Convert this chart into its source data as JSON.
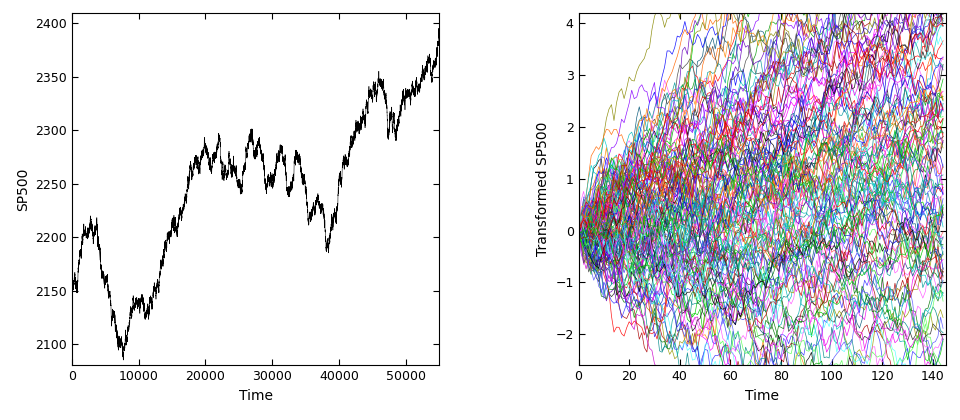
{
  "left_panel": {
    "xlabel": "Time",
    "ylabel": "SP500",
    "xlim": [
      0,
      55000
    ],
    "ylim": [
      2080,
      2410
    ],
    "xticks": [
      0,
      10000,
      20000,
      30000,
      40000,
      50000
    ],
    "yticks": [
      2100,
      2150,
      2200,
      2250,
      2300,
      2350,
      2400
    ],
    "line_color": "#000000",
    "n_points": 55000
  },
  "right_panel": {
    "xlabel": "Time",
    "ylabel": "Transformed SP500",
    "xlim": [
      0,
      145
    ],
    "ylim": [
      -2.6,
      4.2
    ],
    "xticks": [
      0,
      20,
      40,
      60,
      80,
      100,
      120,
      140
    ],
    "yticks": [
      -2,
      -1,
      0,
      1,
      2,
      3,
      4
    ],
    "n_curves": 145,
    "n_timepoints": 145
  },
  "background_color": "#ffffff",
  "font_size": 10,
  "tick_font_size": 9
}
